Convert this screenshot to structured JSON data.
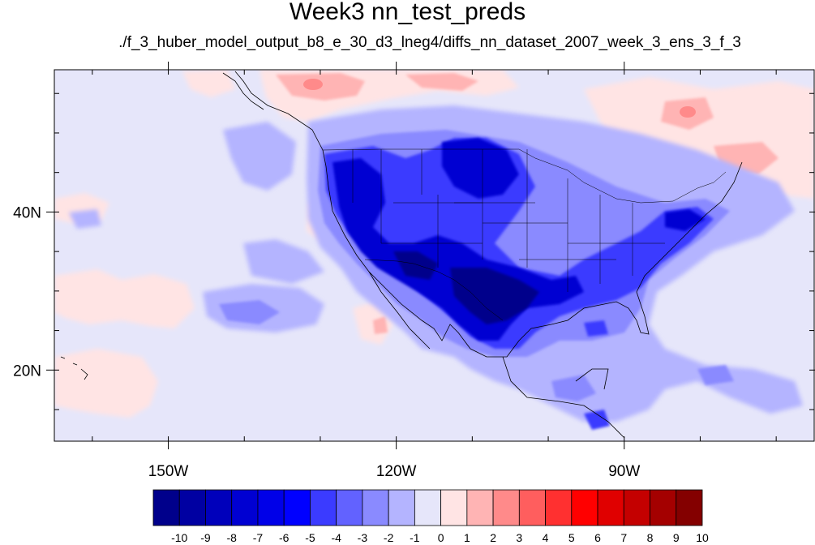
{
  "title": "Week3 nn_test_preds",
  "subtitle": "./f_3_huber_model_output_b8_e_30_d3_lneg4/diffs_nn_dataset_2007_week_3_ens_3_f_3",
  "map": {
    "lon_range": [
      -165,
      -65
    ],
    "lat_range": [
      11,
      58
    ],
    "lon_ticks": [
      {
        "value": -150,
        "label": "150W"
      },
      {
        "value": -120,
        "label": "120W"
      },
      {
        "value": -90,
        "label": "90W"
      }
    ],
    "lat_ticks": [
      {
        "value": 40,
        "label": "40N"
      },
      {
        "value": 20,
        "label": "20N"
      }
    ],
    "background_color": "#e6e6fa"
  },
  "colorbar": {
    "labels": [
      "-10",
      "-9",
      "-8",
      "-7",
      "-6",
      "-5",
      "-4",
      "-3",
      "-2",
      "-1",
      "0",
      "1",
      "2",
      "3",
      "4",
      "5",
      "6",
      "7",
      "8",
      "9",
      "10"
    ],
    "colors": [
      "#00008b",
      "#0000a2",
      "#0000bb",
      "#0000d2",
      "#0000e8",
      "#0000ff",
      "#3b3bff",
      "#6262ff",
      "#8a8aff",
      "#b4b4ff",
      "#e6e6fa",
      "#ffe4e4",
      "#ffb4b4",
      "#ff8a8a",
      "#ff5e5e",
      "#ff3030",
      "#ff0000",
      "#e00000",
      "#c40000",
      "#a40000",
      "#840000"
    ]
  }
}
